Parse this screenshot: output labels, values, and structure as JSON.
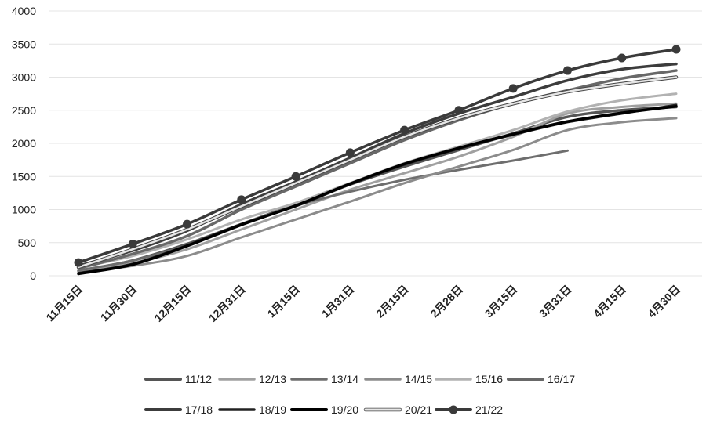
{
  "chart_data": {
    "type": "line",
    "title": "",
    "xlabel": "",
    "ylabel": "",
    "ylim": [
      0,
      4000
    ],
    "yticks": [
      0,
      500,
      1000,
      1500,
      2000,
      2500,
      3000,
      3500,
      4000
    ],
    "grid": true,
    "legend_position": "bottom",
    "categories": [
      "11月15日",
      "11月30日",
      "12月15日",
      "12月31日",
      "1月15日",
      "1月31日",
      "2月15日",
      "2月28日",
      "3月15日",
      "3月31日",
      "4月15日",
      "4月30日"
    ],
    "series": [
      {
        "name": "11/12",
        "color": "#555555",
        "width": 3.5,
        "marker": false,
        "values": [
          70,
          230,
          480,
          780,
          1080,
          1380,
          1650,
          1900,
          2150,
          2400,
          2500,
          2550
        ]
      },
      {
        "name": "12/13",
        "color": "#a0a0a0",
        "width": 3,
        "marker": false,
        "values": [
          60,
          190,
          400,
          700,
          1000,
          1300,
          1550,
          1800,
          2100,
          2450,
          2550,
          2600
        ]
      },
      {
        "name": "13/14",
        "color": "#6e6e6e",
        "width": 3,
        "marker": false,
        "values": [
          80,
          230,
          460,
          780,
          1060,
          1270,
          1450,
          1600,
          1740,
          1890,
          null,
          null
        ]
      },
      {
        "name": "14/15",
        "color": "#8c8c8c",
        "width": 3,
        "marker": false,
        "values": [
          50,
          150,
          300,
          580,
          850,
          1120,
          1400,
          1650,
          1900,
          2200,
          2320,
          2380
        ]
      },
      {
        "name": "15/16",
        "color": "#b2b2b2",
        "width": 3,
        "marker": false,
        "values": [
          120,
          300,
          550,
          850,
          1100,
          1400,
          1700,
          1950,
          2200,
          2480,
          2650,
          2750
        ]
      },
      {
        "name": "16/17",
        "color": "#686868",
        "width": 3.5,
        "marker": false,
        "values": [
          110,
          330,
          600,
          1000,
          1350,
          1700,
          2050,
          2350,
          2600,
          2800,
          2980,
          3100
        ]
      },
      {
        "name": "17/18",
        "color": "#3c3c3c",
        "width": 3.5,
        "marker": false,
        "values": [
          150,
          380,
          680,
          1080,
          1420,
          1780,
          2150,
          2450,
          2700,
          2950,
          3120,
          3200
        ]
      },
      {
        "name": "18/19",
        "color": "#222222",
        "width": 3,
        "marker": false,
        "values": [
          40,
          180,
          460,
          780,
          1050,
          1380,
          1680,
          1920,
          2130,
          2320,
          2450,
          2580
        ]
      },
      {
        "name": "19/20",
        "color": "#000000",
        "width": 3.5,
        "marker": false,
        "values": [
          30,
          170,
          450,
          770,
          1060,
          1390,
          1690,
          1930,
          2140,
          2330,
          2460,
          2560
        ]
      },
      {
        "name": "20/21",
        "color": "#e6e6e6",
        "width": 2.5,
        "outline": "#444444",
        "marker": false,
        "values": [
          130,
          400,
          700,
          1050,
          1400,
          1750,
          2100,
          2380,
          2600,
          2780,
          2900,
          3000
        ]
      },
      {
        "name": "21/22",
        "color": "#3a3a3a",
        "width": 3.5,
        "marker": true,
        "values": [
          200,
          480,
          780,
          1150,
          1500,
          1860,
          2200,
          2500,
          2830,
          3100,
          3290,
          3420
        ]
      }
    ]
  }
}
